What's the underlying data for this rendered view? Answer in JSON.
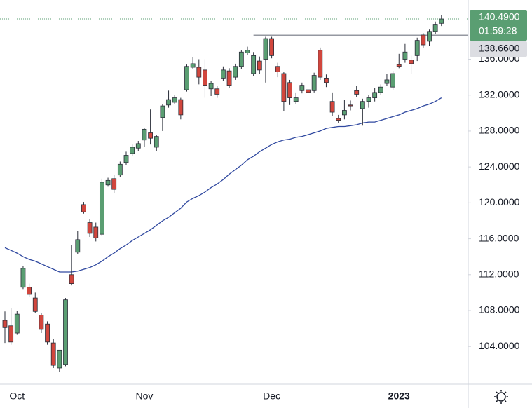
{
  "chart_data": {
    "type": "candlestick",
    "categories": [
      null,
      null,
      "Oct",
      null,
      null,
      null,
      null,
      null,
      null,
      null,
      null,
      null,
      null,
      null,
      null,
      null,
      null,
      null,
      null,
      null,
      null,
      null,
      null,
      "Nov",
      null,
      null,
      null,
      null,
      null,
      null,
      null,
      null,
      null,
      null,
      null,
      null,
      null,
      null,
      null,
      null,
      null,
      null,
      null,
      null,
      "Dec",
      null,
      null,
      null,
      null,
      null,
      null,
      null,
      null,
      null,
      null,
      null,
      null,
      null,
      null,
      null,
      null,
      null,
      null,
      null,
      null,
      "2023",
      null,
      null,
      null,
      null,
      null,
      null,
      null
    ],
    "open": [
      106.9,
      106.3,
      105.5,
      110.6,
      110.6,
      109.4,
      107.5,
      106.5,
      104.4,
      101.6,
      102.0,
      112.0,
      114.5,
      119.8,
      117.8,
      117.3,
      116.5,
      122.0,
      122.7,
      123.1,
      124.5,
      125.5,
      126.1,
      127.0,
      127.8,
      126.2,
      129.5,
      130.9,
      131.2,
      131.5,
      132.6,
      135.1,
      135.1,
      134.8,
      132.7,
      132.7,
      133.9,
      134.7,
      134.0,
      135.2,
      136.7,
      134.4,
      135.8,
      136.0,
      138.3,
      135.2,
      134.4,
      133.4,
      131.3,
      132.5,
      132.6,
      132.5,
      137.0,
      133.9,
      131.3,
      129.4,
      129.8,
      130.9,
      132.5,
      130.5,
      131.3,
      131.7,
      132.3,
      133.3,
      132.9,
      135.4,
      136.0,
      135.9,
      136.4,
      138.7,
      138.0,
      139.1,
      140.0
    ],
    "high": [
      107.9,
      108.3,
      108.0,
      113.0,
      111.0,
      110.0,
      107.7,
      106.8,
      104.8,
      103.6,
      109.4,
      115.3,
      116.9,
      120.1,
      118.2,
      117.8,
      122.7,
      122.8,
      123.1,
      124.6,
      125.7,
      126.5,
      126.9,
      128.3,
      130.4,
      127.6,
      131.0,
      132.5,
      132.0,
      131.7,
      135.4,
      136.2,
      136.0,
      136.0,
      133.6,
      133.0,
      135.2,
      135.0,
      135.5,
      137.0,
      137.4,
      136.8,
      136.3,
      138.5,
      138.5,
      135.6,
      134.6,
      133.7,
      132.3,
      133.4,
      132.8,
      134.5,
      137.3,
      134.3,
      132.3,
      129.8,
      131.5,
      131.4,
      133.0,
      131.6,
      132.0,
      132.8,
      133.2,
      134.4,
      134.7,
      136.6,
      137.7,
      136.4,
      138.4,
      138.9,
      139.3,
      140.2,
      140.9
    ],
    "low": [
      104.4,
      104.2,
      105.3,
      110.4,
      109.5,
      107.7,
      105.5,
      104.2,
      101.6,
      101.2,
      101.8,
      110.8,
      114.3,
      118.8,
      116.2,
      115.7,
      116.3,
      121.8,
      121.1,
      122.9,
      124.2,
      125.2,
      125.8,
      126.2,
      126.5,
      125.8,
      128.0,
      130.6,
      131.0,
      129.3,
      132.4,
      134.9,
      133.2,
      131.7,
      131.9,
      131.7,
      133.6,
      132.8,
      133.7,
      134.9,
      136.5,
      134.1,
      134.4,
      133.4,
      136.1,
      134.0,
      130.2,
      130.9,
      131.0,
      132.2,
      131.9,
      132.3,
      133.7,
      132.9,
      129.7,
      128.9,
      129.3,
      130.3,
      131.8,
      128.6,
      130.6,
      131.3,
      132.0,
      133.0,
      132.6,
      135.0,
      135.6,
      134.4,
      135.8,
      137.3,
      137.5,
      138.8,
      139.7
    ],
    "close": [
      106.1,
      104.5,
      107.6,
      112.7,
      109.8,
      107.9,
      105.9,
      104.5,
      101.9,
      103.6,
      109.2,
      111.0,
      115.9,
      119.0,
      116.6,
      116.1,
      122.3,
      122.5,
      121.5,
      124.3,
      125.3,
      126.2,
      126.6,
      128.2,
      127.2,
      127.4,
      130.8,
      131.5,
      131.7,
      129.8,
      135.2,
      135.5,
      134.0,
      133.1,
      133.3,
      132.1,
      134.8,
      133.1,
      135.2,
      136.8,
      137.0,
      136.4,
      134.8,
      138.3,
      136.4,
      134.6,
      131.3,
      131.7,
      131.7,
      133.1,
      132.3,
      134.2,
      134.0,
      133.4,
      130.1,
      129.2,
      130.3,
      130.8,
      132.1,
      131.3,
      131.7,
      132.3,
      132.9,
      133.7,
      134.4,
      135.2,
      136.8,
      135.5,
      138.1,
      137.6,
      139.1,
      139.9,
      140.49
    ],
    "up_color": "#5a9e72",
    "down_color": "#d1463d",
    "ma": {
      "color": "#3049a0",
      "values": [
        115.0,
        114.7,
        114.4,
        114.0,
        113.7,
        113.5,
        113.2,
        112.9,
        112.6,
        112.3,
        112.3,
        112.3,
        112.4,
        112.6,
        112.8,
        113.1,
        113.5,
        114.0,
        114.4,
        114.9,
        115.3,
        115.8,
        116.2,
        116.6,
        117.0,
        117.5,
        118.0,
        118.4,
        118.9,
        119.4,
        120.1,
        120.5,
        120.8,
        121.2,
        121.7,
        122.1,
        122.6,
        123.2,
        123.7,
        124.2,
        124.8,
        125.2,
        125.7,
        126.1,
        126.5,
        126.8,
        127.0,
        127.1,
        127.3,
        127.4,
        127.6,
        127.8,
        128.0,
        128.3,
        128.4,
        128.5,
        128.5,
        128.6,
        128.7,
        128.9,
        129.0,
        129.0,
        129.2,
        129.4,
        129.6,
        129.8,
        130.1,
        130.3,
        130.5,
        130.8,
        131.0,
        131.3,
        131.7
      ]
    },
    "level": {
      "value": 138.66,
      "label": "138.6600",
      "color": "#9598a1"
    },
    "last_price": {
      "label": "140.4900",
      "countdown": "01:59:28",
      "color": "#5a9e72"
    },
    "ylim": [
      99.8,
      142.6
    ],
    "yticks": [
      {
        "value": 104,
        "label": "104.0000"
      },
      {
        "value": 108,
        "label": "108.0000"
      },
      {
        "value": 112,
        "label": "112.0000"
      },
      {
        "value": 116,
        "label": "116.0000"
      },
      {
        "value": 120,
        "label": "120.0000"
      },
      {
        "value": 124,
        "label": "124.0000"
      },
      {
        "value": 128,
        "label": "128.0000"
      },
      {
        "value": 132,
        "label": "132.0000"
      },
      {
        "value": 136,
        "label": "136.0000"
      }
    ]
  }
}
